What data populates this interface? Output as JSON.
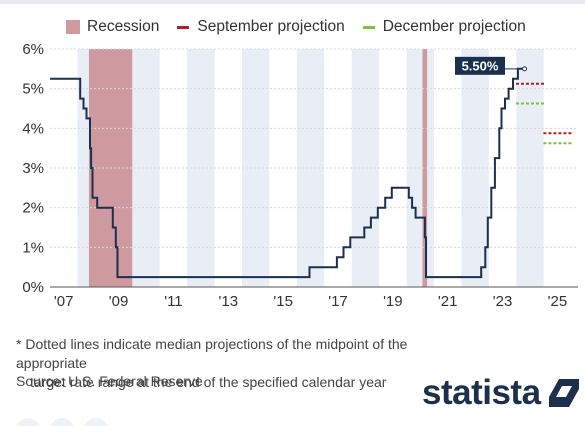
{
  "legend": {
    "recession": "Recession",
    "september": "September projection",
    "december": "December projection"
  },
  "colors": {
    "recession": "#cf9a9f",
    "september": "#b21e2c",
    "december": "#7bc33a",
    "line": "#1b2f4f",
    "band": "#e9eef6",
    "grid": "#d8d8d8",
    "callout": "#1b2f4f"
  },
  "chart_data": {
    "type": "line",
    "step": true,
    "xlim": [
      2006.5,
      2025.75
    ],
    "ylim": [
      0,
      6
    ],
    "x_ticks": [
      {
        "value": 2007,
        "label": "'07"
      },
      {
        "value": 2009,
        "label": "'09"
      },
      {
        "value": 2011,
        "label": "'11"
      },
      {
        "value": 2013,
        "label": "'13"
      },
      {
        "value": 2015,
        "label": "'15"
      },
      {
        "value": 2017,
        "label": "'17"
      },
      {
        "value": 2019,
        "label": "'19"
      },
      {
        "value": 2021,
        "label": "'21"
      },
      {
        "value": 2023,
        "label": "'23"
      },
      {
        "value": 2025,
        "label": "'25"
      }
    ],
    "y_ticks": [
      {
        "value": 0,
        "label": "0%"
      },
      {
        "value": 1,
        "label": "1%"
      },
      {
        "value": 2,
        "label": "2%"
      },
      {
        "value": 3,
        "label": "3%"
      },
      {
        "value": 4,
        "label": "4%"
      },
      {
        "value": 5,
        "label": "5%"
      },
      {
        "value": 6,
        "label": "6%"
      }
    ],
    "recessions": [
      [
        2007.92,
        2009.5
      ],
      [
        2020.08,
        2020.25
      ]
    ],
    "series": [
      {
        "x": [
          2006.5,
          2007.6,
          2007.72,
          2007.83,
          2007.96,
          2008.0,
          2008.05,
          2008.22,
          2008.33,
          2008.79,
          2008.9,
          2008.96,
          2015.96,
          2016.96,
          2017.2,
          2017.45,
          2017.96,
          2018.2,
          2018.45,
          2018.72,
          2018.96,
          2019.58,
          2019.7,
          2019.83,
          2020.17,
          2020.21,
          2022.22,
          2022.37,
          2022.46,
          2022.59,
          2022.72,
          2022.88,
          2022.96,
          2023.09,
          2023.22,
          2023.38,
          2023.56,
          2023.8
        ],
        "y": [
          5.25,
          4.75,
          4.5,
          4.25,
          3.5,
          3.0,
          2.25,
          2.0,
          2.0,
          1.5,
          1.0,
          0.25,
          0.5,
          0.75,
          1.0,
          1.25,
          1.5,
          1.75,
          2.0,
          2.25,
          2.5,
          2.25,
          2.0,
          1.75,
          1.25,
          0.25,
          0.5,
          1.0,
          1.75,
          2.5,
          3.25,
          4.0,
          4.5,
          4.75,
          5.0,
          5.25,
          5.5,
          5.5
        ]
      }
    ],
    "projections": [
      {
        "name": "September projection",
        "x": 2024,
        "y": 5.125
      },
      {
        "name": "December projection",
        "x": 2024,
        "y": 4.625
      },
      {
        "name": "September projection",
        "x": 2025,
        "y": 3.875
      },
      {
        "name": "December projection",
        "x": 2025,
        "y": 3.625
      }
    ],
    "annotation": {
      "label": "5.50%",
      "x": 2023.8,
      "y": 5.5
    }
  },
  "footnote": {
    "line1": "* Dotted lines indicate median projections of the midpoint of the appropriate",
    "line2": "target rate range at the end of the specified calendar year"
  },
  "source": "Source: U.S. Federal Reserve",
  "logo": "statista"
}
